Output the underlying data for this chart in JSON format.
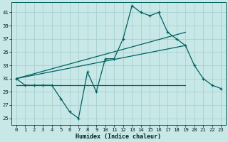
{
  "xlabel": "Humidex (Indice chaleur)",
  "bg_color": "#c8e8e8",
  "grid_color": "#a8d0d0",
  "line_color": "#006060",
  "xlim": [
    -0.5,
    23.5
  ],
  "ylim": [
    24,
    42.5
  ],
  "yticks": [
    25,
    27,
    29,
    31,
    33,
    35,
    37,
    39,
    41
  ],
  "xticks": [
    0,
    1,
    2,
    3,
    4,
    5,
    6,
    7,
    8,
    9,
    10,
    11,
    12,
    13,
    14,
    15,
    16,
    17,
    18,
    19,
    20,
    21,
    22,
    23
  ],
  "y_main": [
    31,
    30,
    30,
    30,
    30,
    28,
    26,
    25,
    32,
    29,
    34,
    34,
    37,
    42,
    41,
    40.5,
    41,
    38,
    37,
    36,
    33,
    31,
    30,
    29.5
  ],
  "diag1_x0": 0,
  "diag1_y0": 31,
  "diag1_x1": 19,
  "diag1_y1": 38,
  "diag2_x0": 0,
  "diag2_y0": 31,
  "diag2_x1": 19,
  "diag2_y1": 36,
  "flat_x0": 0,
  "flat_x1": 19,
  "flat_y": 30
}
